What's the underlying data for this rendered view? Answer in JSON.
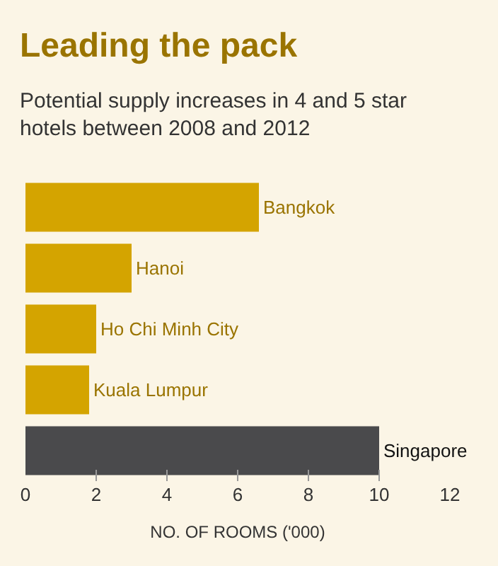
{
  "chart_data": {
    "type": "bar",
    "orientation": "horizontal",
    "title": "Leading the pack",
    "subtitle": "Potential supply increases in 4 and 5 star hotels between 2008 and 2012",
    "xlabel": "NO. OF ROOMS ('000)",
    "categories": [
      "Bangkok",
      "Hanoi",
      "Ho Chi Minh City",
      "Kuala Lumpur",
      "Singapore"
    ],
    "values": [
      6.6,
      3.0,
      2.0,
      1.8,
      10.0
    ],
    "colors": [
      "#d4a400",
      "#d4a400",
      "#d4a400",
      "#d4a400",
      "#4a4a4c"
    ],
    "xlim": [
      0,
      12
    ],
    "xticks": [
      0,
      2,
      4,
      6,
      8,
      10,
      12
    ],
    "grid": false,
    "legend": false,
    "tick_labels": "x"
  }
}
